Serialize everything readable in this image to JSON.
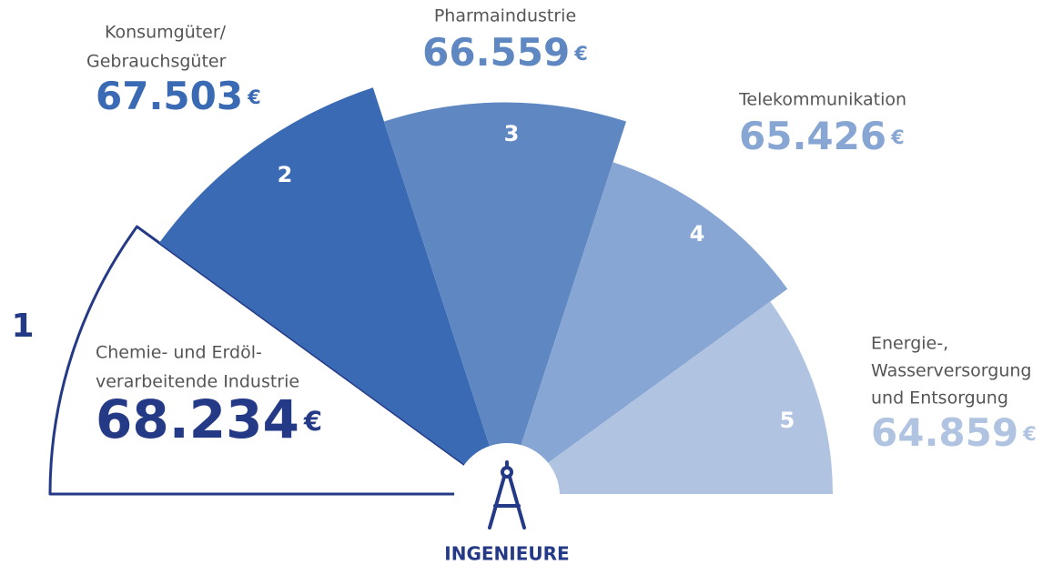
{
  "chart_data": {
    "type": "fan",
    "categories": [
      [
        "Chemie- und Erdöl-",
        "verarbeitende Industrie"
      ],
      [
        "Konsumgüter/",
        "Gebrauchsgüter"
      ],
      [
        "Pharmaindustrie"
      ],
      [
        "Telekommunikation"
      ],
      [
        "Energie-,",
        "Wasserversorgung",
        "und Entsorgung"
      ]
    ],
    "values": [
      68234,
      67503,
      66559,
      65426,
      64859
    ],
    "value_labels": [
      "68.234",
      "67.503",
      "66.559",
      "65.426",
      "64.859"
    ],
    "unit": "€",
    "ranks": [
      1,
      2,
      3,
      4,
      5
    ],
    "colors": [
      "#ffffff",
      "#3a6ab4",
      "#5f88c3",
      "#87a6d3",
      "#b0c4e2"
    ],
    "label_colors": [
      "#253a86",
      "#3a6ab4",
      "#5f88c3",
      "#87a6d3",
      "#b0c4e2"
    ],
    "outline_color": "#253a86",
    "center_label": "INGENIEURE"
  }
}
